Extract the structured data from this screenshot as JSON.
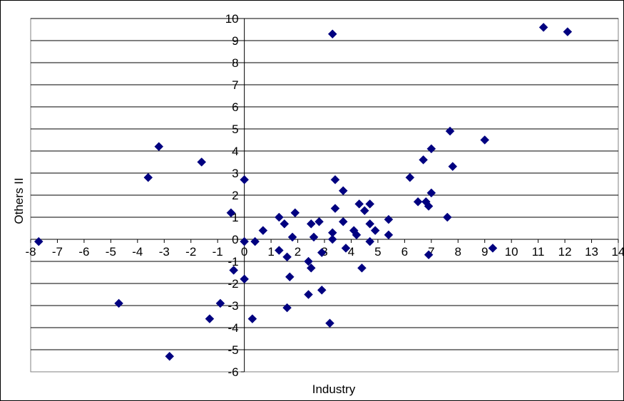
{
  "chart_data": {
    "type": "scatter",
    "xlabel": "Industry",
    "ylabel": "Others II",
    "xlim": [
      -8,
      14
    ],
    "ylim": [
      -6,
      10
    ],
    "x_ticks": [
      -8,
      -7,
      -6,
      -5,
      -4,
      -3,
      -2,
      -1,
      0,
      1,
      2,
      3,
      4,
      5,
      6,
      7,
      8,
      9,
      10,
      11,
      12,
      13,
      14
    ],
    "y_ticks": [
      -6,
      -5,
      -4,
      -3,
      -2,
      -1,
      0,
      1,
      2,
      3,
      4,
      5,
      6,
      7,
      8,
      9,
      10
    ],
    "tick_labels_x": [
      "-8",
      "-7",
      "-6",
      "-5",
      "-4",
      "-3",
      "-2",
      "-1",
      "0",
      "1",
      "2",
      "3",
      "4",
      "5",
      "6",
      "7",
      "8",
      "9",
      "10",
      "11",
      "12",
      "13",
      "14"
    ],
    "tick_labels_y": [
      "-6",
      "-5",
      "-4",
      "-3",
      "-2",
      "-1",
      "0",
      "1",
      "2",
      "3",
      "4",
      "5",
      "6",
      "7",
      "8",
      "9",
      "10"
    ],
    "grid": "horizontal",
    "marker_color": "#000080",
    "points": [
      [
        -7.7,
        -0.1
      ],
      [
        -4.7,
        -2.9
      ],
      [
        -3.6,
        2.8
      ],
      [
        -3.2,
        4.2
      ],
      [
        -2.8,
        -5.3
      ],
      [
        -1.6,
        3.5
      ],
      [
        -1.3,
        -3.6
      ],
      [
        -0.9,
        -2.9
      ],
      [
        -0.5,
        1.2
      ],
      [
        -0.4,
        -1.4
      ],
      [
        0.0,
        2.7
      ],
      [
        0.0,
        -0.1
      ],
      [
        0.0,
        -1.8
      ],
      [
        0.3,
        -3.6
      ],
      [
        0.4,
        -0.1
      ],
      [
        0.7,
        0.4
      ],
      [
        1.3,
        -0.5
      ],
      [
        1.3,
        1.0
      ],
      [
        1.5,
        0.7
      ],
      [
        1.6,
        -0.8
      ],
      [
        1.6,
        -3.1
      ],
      [
        1.7,
        -1.7
      ],
      [
        1.8,
        0.1
      ],
      [
        1.9,
        1.2
      ],
      [
        2.4,
        -1.0
      ],
      [
        2.4,
        -2.5
      ],
      [
        2.5,
        -1.3
      ],
      [
        2.5,
        0.7
      ],
      [
        2.6,
        0.1
      ],
      [
        2.8,
        0.8
      ],
      [
        2.9,
        -0.6
      ],
      [
        2.9,
        -2.3
      ],
      [
        3.2,
        -3.8
      ],
      [
        3.3,
        9.3
      ],
      [
        3.3,
        0.3
      ],
      [
        3.3,
        0.0
      ],
      [
        3.4,
        2.7
      ],
      [
        3.4,
        1.4
      ],
      [
        3.7,
        2.2
      ],
      [
        3.7,
        0.8
      ],
      [
        3.8,
        -0.4
      ],
      [
        4.1,
        0.4
      ],
      [
        4.2,
        0.2
      ],
      [
        4.3,
        1.6
      ],
      [
        4.4,
        -1.3
      ],
      [
        4.5,
        1.3
      ],
      [
        4.7,
        -0.1
      ],
      [
        4.7,
        1.6
      ],
      [
        4.7,
        0.7
      ],
      [
        4.9,
        0.4
      ],
      [
        5.4,
        0.9
      ],
      [
        5.4,
        0.2
      ],
      [
        6.2,
        2.8
      ],
      [
        6.5,
        1.7
      ],
      [
        6.7,
        3.6
      ],
      [
        6.8,
        1.7
      ],
      [
        6.9,
        -0.7
      ],
      [
        6.9,
        1.5
      ],
      [
        7.0,
        4.1
      ],
      [
        7.0,
        2.1
      ],
      [
        7.6,
        1.0
      ],
      [
        7.7,
        4.9
      ],
      [
        7.8,
        3.3
      ],
      [
        9.0,
        4.5
      ],
      [
        9.3,
        -0.4
      ],
      [
        11.2,
        9.6
      ],
      [
        12.1,
        9.4
      ]
    ]
  }
}
